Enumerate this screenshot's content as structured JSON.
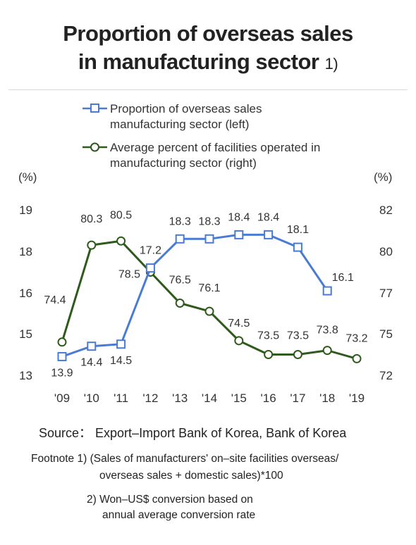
{
  "title": {
    "line1": "Proportion of overseas sales",
    "line2": "in manufacturing sector",
    "footnote_ref": "1)"
  },
  "source": "Source： Export–Import Bank of Korea, Bank of Korea",
  "footnotes": {
    "f1_line1": "Footnote 1) (Sales of manufacturers' on–site facilities overseas/",
    "f1_line2": "overseas sales + domestic sales)*100",
    "f2_line1": "2) Won–US$ conversion based on",
    "f2_line2": "annual average conversion rate"
  },
  "chart_data": {
    "type": "line",
    "categories": [
      "'09",
      "'10",
      "'11",
      "'12",
      "'13",
      "'14",
      "'15",
      "'16",
      "'17",
      "'18",
      "'19"
    ],
    "legend": {
      "line1_a": "Proportion of overseas sales",
      "line1_b": "manufacturing sector  (left)",
      "line2_a": "Average percent of facilities operated in",
      "line2_b": "manufacturing sector (right)"
    },
    "left_axis": {
      "unit": "(%)",
      "ticks": [
        13,
        15,
        16,
        18,
        19
      ]
    },
    "right_axis": {
      "unit": "(%)",
      "ticks": [
        72,
        75,
        77,
        80,
        82
      ]
    },
    "series": [
      {
        "name": "Proportion of overseas sales manufacturing sector (left)",
        "axis": "left",
        "color": "#4a7bd4",
        "marker": "square",
        "values": [
          13.9,
          14.4,
          14.5,
          17.2,
          18.3,
          18.3,
          18.4,
          18.4,
          18.1,
          16.1,
          null
        ],
        "labels": [
          "13.9",
          "14.4",
          "14.5",
          "17.2",
          "18.3",
          "18.3",
          "18.4",
          "18.4",
          "18.1",
          "16.1",
          ""
        ]
      },
      {
        "name": "Average percent of facilities operated in manufacturing sector (right)",
        "axis": "right",
        "color": "#2e5a1c",
        "marker": "circle",
        "values": [
          74.4,
          80.3,
          80.5,
          78.5,
          76.5,
          76.1,
          74.5,
          73.5,
          73.5,
          73.8,
          73.2
        ],
        "labels": [
          "74.4",
          "80.3",
          "80.5",
          "78.5",
          "76.5",
          "76.1",
          "74.5",
          "73.5",
          "73.5",
          "73.8",
          "73.2"
        ]
      }
    ]
  }
}
